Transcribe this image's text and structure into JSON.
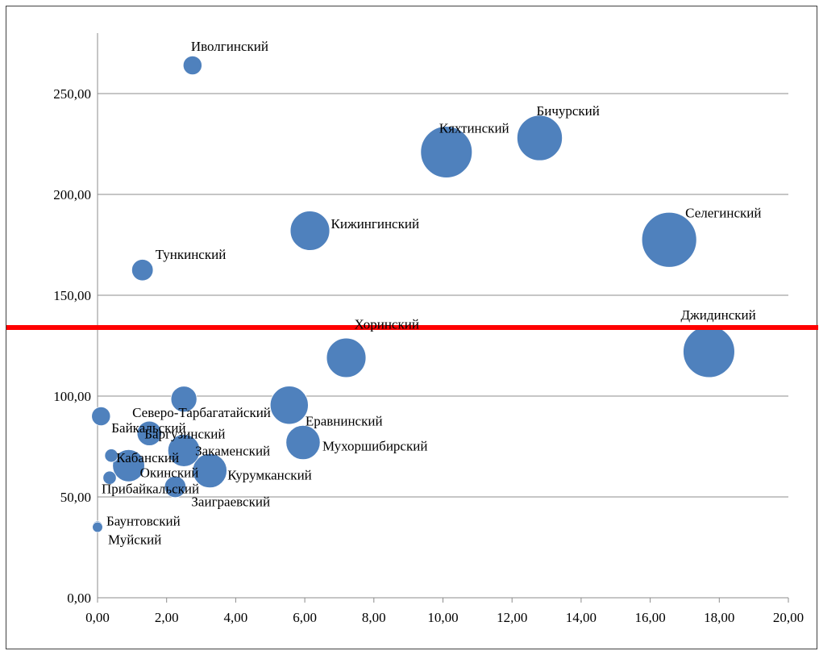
{
  "chart_data": {
    "type": "scatter",
    "subtype": "bubble",
    "title": "",
    "xlabel": "",
    "ylabel": "",
    "xlim": [
      0,
      20
    ],
    "ylim": [
      0,
      250
    ],
    "xticks": [
      0,
      2,
      4,
      6,
      8,
      10,
      12,
      14,
      16,
      18,
      20
    ],
    "yticks": [
      0,
      50,
      100,
      150,
      200,
      250
    ],
    "xtick_labels": [
      "0,00",
      "2,00",
      "4,00",
      "6,00",
      "8,00",
      "10,00",
      "12,00",
      "14,00",
      "16,00",
      "18,00",
      "20,00"
    ],
    "ytick_labels": [
      "0,00",
      "50,00",
      "100,00",
      "150,00",
      "200,00",
      "250,00"
    ],
    "grid": "horizontal",
    "legend": "none",
    "bubble_color": "#4F81BD",
    "reference_line": {
      "y": 134,
      "color": "#FF0000"
    },
    "points": [
      {
        "label": "Иволгинский",
        "x": 2.75,
        "y": 264,
        "size": 1.0
      },
      {
        "label": "Бичурский",
        "x": 12.8,
        "y": 228,
        "size": 5.8
      },
      {
        "label": "Кяхтинский",
        "x": 10.1,
        "y": 221,
        "size": 7.5
      },
      {
        "label": "Кижингинский",
        "x": 6.15,
        "y": 182,
        "size": 4.4
      },
      {
        "label": "Селегинский",
        "x": 16.55,
        "y": 177.5,
        "size": 8.5
      },
      {
        "label": "Тункинский",
        "x": 1.3,
        "y": 162.5,
        "size": 1.3
      },
      {
        "label": "Хоринский",
        "x": 7.2,
        "y": 119,
        "size": 4.4
      },
      {
        "label": "Джидинский",
        "x": 17.7,
        "y": 122,
        "size": 7.5
      },
      {
        "label": "Северо-Тарбагатайский",
        "x": 2.5,
        "y": 98.5,
        "size": 1.9
      },
      {
        "label": "Еравнинский",
        "x": 5.55,
        "y": 95.5,
        "size": 4.1
      },
      {
        "label": "Байкальский",
        "x": 0.1,
        "y": 90,
        "size": 1.0
      },
      {
        "label": "Баргузинский",
        "x": 1.5,
        "y": 81.5,
        "size": 1.7
      },
      {
        "label": "Мухоршибирский",
        "x": 5.95,
        "y": 77,
        "size": 3.3
      },
      {
        "label": "Закаменский",
        "x": 2.5,
        "y": 73,
        "size": 2.9
      },
      {
        "label": "Кабанский",
        "x": 0.4,
        "y": 70.5,
        "size": 0.5
      },
      {
        "label": "Окинский",
        "x": 0.9,
        "y": 65.5,
        "size": 2.9
      },
      {
        "label": "Курумканский",
        "x": 3.25,
        "y": 63,
        "size": 3.3
      },
      {
        "label": "Прибайкальский",
        "x": 0.35,
        "y": 59.5,
        "size": 0.5
      },
      {
        "label": "Заиграевский",
        "x": 2.25,
        "y": 55,
        "size": 1.3
      },
      {
        "label": "Баунтовский",
        "x": 0.0,
        "y": 35.5,
        "size": 0.3
      },
      {
        "label": "Муйский",
        "x": 0.0,
        "y": 35.0,
        "size": 0.3
      }
    ]
  }
}
